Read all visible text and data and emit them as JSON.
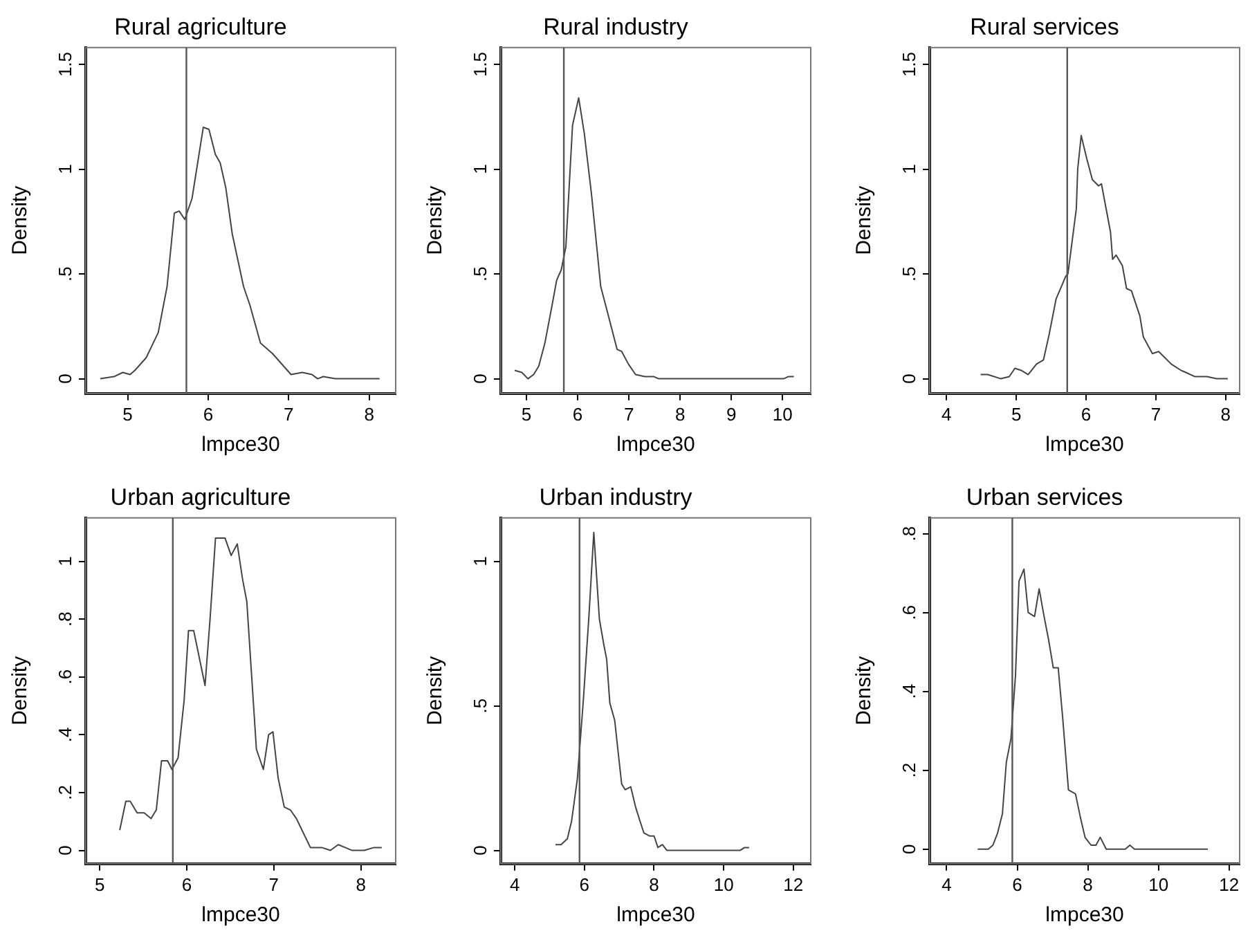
{
  "chart_data": [
    {
      "type": "line",
      "title": "Rural agriculture",
      "xlabel": "lmpce30",
      "ylabel": "Density",
      "xlim": [
        4.48,
        8.33
      ],
      "xticks": [
        5,
        6,
        7,
        8
      ],
      "ylim": [
        -0.07,
        1.58
      ],
      "yticks": [
        0,
        {
          "value": 0.5,
          "label": ".5"
        },
        1,
        1.5
      ],
      "grid": false,
      "legend": false,
      "marker": "none",
      "ref_lines": [
        {
          "axis": "x",
          "value": 5.73,
          "color": "#555555"
        }
      ],
      "series": [
        {
          "color": "#444444",
          "x": [
            4.66,
            4.83,
            4.94,
            5.03,
            5.09,
            5.23,
            5.38,
            5.49,
            5.58,
            5.64,
            5.71,
            5.8,
            5.94,
            6.01,
            6.09,
            6.15,
            6.22,
            6.3,
            6.44,
            6.52,
            6.65,
            6.8,
            7.03,
            7.17,
            7.29,
            7.36,
            7.43,
            7.58,
            8.13
          ],
          "values": [
            0,
            0.01,
            0.03,
            0.02,
            0.04,
            0.1,
            0.22,
            0.44,
            0.79,
            0.8,
            0.76,
            0.86,
            1.2,
            1.19,
            1.07,
            1.03,
            0.91,
            0.69,
            0.44,
            0.35,
            0.17,
            0.12,
            0.02,
            0.03,
            0.02,
            0,
            0.01,
            0,
            0
          ]
        }
      ]
    },
    {
      "type": "line",
      "title": "Rural industry",
      "xlabel": "lmpce30",
      "ylabel": "Density",
      "xlim": [
        4.5,
        10.55
      ],
      "xticks": [
        5,
        6,
        7,
        8,
        9,
        10
      ],
      "ylim": [
        -0.07,
        1.58
      ],
      "yticks": [
        0,
        {
          "value": 0.5,
          "label": ".5"
        },
        1,
        1.5
      ],
      "grid": false,
      "legend": false,
      "marker": "none",
      "ref_lines": [
        {
          "axis": "x",
          "value": 5.73,
          "color": "#555555"
        }
      ],
      "series": [
        {
          "color": "#444444",
          "x": [
            4.77,
            4.91,
            5.03,
            5.14,
            5.24,
            5.36,
            5.5,
            5.59,
            5.68,
            5.77,
            5.9,
            6.02,
            6.13,
            6.27,
            6.45,
            6.59,
            6.77,
            6.86,
            6.99,
            7.13,
            7.31,
            7.49,
            7.58,
            10.02,
            10.11,
            10.22
          ],
          "values": [
            0.04,
            0.03,
            0,
            0.02,
            0.06,
            0.17,
            0.35,
            0.47,
            0.52,
            0.63,
            1.21,
            1.34,
            1.17,
            0.88,
            0.44,
            0.31,
            0.14,
            0.13,
            0.07,
            0.02,
            0.01,
            0.01,
            0,
            0,
            0.01,
            0.01
          ]
        }
      ]
    },
    {
      "type": "line",
      "title": "Rural services",
      "xlabel": "lmpce30",
      "ylabel": "Density",
      "xlim": [
        3.76,
        8.2
      ],
      "xticks": [
        4,
        5,
        6,
        7,
        8
      ],
      "ylim": [
        -0.07,
        1.58
      ],
      "yticks": [
        0,
        {
          "value": 0.5,
          "label": ".5"
        },
        1,
        1.5
      ],
      "grid": false,
      "legend": false,
      "marker": "none",
      "ref_lines": [
        {
          "axis": "x",
          "value": 5.73,
          "color": "#555555"
        }
      ],
      "series": [
        {
          "color": "#444444",
          "x": [
            4.49,
            4.59,
            4.78,
            4.9,
            4.98,
            5.07,
            5.17,
            5.29,
            5.39,
            5.47,
            5.57,
            5.71,
            5.74,
            5.86,
            5.88,
            5.93,
            6.01,
            6.09,
            6.18,
            6.22,
            6.35,
            6.38,
            6.43,
            6.52,
            6.58,
            6.65,
            6.77,
            6.82,
            6.95,
            7.04,
            7.22,
            7.36,
            7.43,
            7.56,
            7.73,
            7.87,
            8.03
          ],
          "values": [
            0.02,
            0.02,
            0,
            0.01,
            0.05,
            0.04,
            0.02,
            0.07,
            0.09,
            0.21,
            0.38,
            0.49,
            0.5,
            0.81,
            1.0,
            1.16,
            1.05,
            0.95,
            0.92,
            0.93,
            0.7,
            0.57,
            0.59,
            0.54,
            0.43,
            0.42,
            0.3,
            0.2,
            0.12,
            0.13,
            0.07,
            0.04,
            0.03,
            0.01,
            0.01,
            0,
            0
          ]
        }
      ]
    },
    {
      "type": "line",
      "title": "Urban agriculture",
      "xlabel": "lmpce30",
      "ylabel": "Density",
      "xlim": [
        4.84,
        8.4
      ],
      "xticks": [
        5,
        6,
        7,
        8
      ],
      "ylim": [
        -0.046,
        1.15
      ],
      "yticks": [
        0,
        {
          "value": 0.2,
          "label": ".2"
        },
        {
          "value": 0.4,
          "label": ".4"
        },
        {
          "value": 0.6,
          "label": ".6"
        },
        {
          "value": 0.8,
          "label": ".8"
        },
        1
      ],
      "grid": false,
      "legend": false,
      "marker": "none",
      "ref_lines": [
        {
          "axis": "x",
          "value": 5.84,
          "color": "#555555"
        }
      ],
      "series": [
        {
          "color": "#444444",
          "x": [
            5.23,
            5.3,
            5.35,
            5.43,
            5.51,
            5.59,
            5.65,
            5.71,
            5.78,
            5.83,
            5.9,
            5.97,
            6.02,
            6.08,
            6.21,
            6.27,
            6.33,
            6.44,
            6.51,
            6.58,
            6.64,
            6.69,
            6.8,
            6.88,
            6.94,
            6.99,
            7.05,
            7.12,
            7.19,
            7.26,
            7.34,
            7.42,
            7.55,
            7.65,
            7.74,
            7.82,
            7.9,
            8.04,
            8.15,
            8.24
          ],
          "values": [
            0.07,
            0.17,
            0.17,
            0.13,
            0.13,
            0.11,
            0.14,
            0.31,
            0.31,
            0.28,
            0.32,
            0.52,
            0.76,
            0.76,
            0.57,
            0.81,
            1.08,
            1.08,
            1.02,
            1.06,
            0.94,
            0.86,
            0.35,
            0.28,
            0.4,
            0.41,
            0.25,
            0.15,
            0.14,
            0.11,
            0.06,
            0.01,
            0.01,
            0,
            0.02,
            0.01,
            0,
            0,
            0.01,
            0.01
          ]
        }
      ]
    },
    {
      "type": "line",
      "title": "Urban industry",
      "xlabel": "lmpce30",
      "ylabel": "Density",
      "xlim": [
        3.6,
        12.5
      ],
      "xticks": [
        4,
        6,
        8,
        10,
        12
      ],
      "ylim": [
        -0.046,
        1.15
      ],
      "yticks": [
        0,
        {
          "value": 0.5,
          "label": ".5"
        },
        1
      ],
      "grid": false,
      "legend": false,
      "marker": "none",
      "ref_lines": [
        {
          "axis": "x",
          "value": 5.86,
          "color": "#555555"
        }
      ],
      "series": [
        {
          "color": "#444444",
          "x": [
            5.17,
            5.33,
            5.51,
            5.63,
            5.8,
            5.97,
            6.13,
            6.27,
            6.43,
            6.56,
            6.64,
            6.73,
            6.87,
            6.96,
            7.07,
            7.17,
            7.33,
            7.47,
            7.6,
            7.71,
            7.87,
            8.0,
            8.11,
            8.24,
            8.37,
            10.47,
            10.6,
            10.73
          ],
          "values": [
            0.02,
            0.02,
            0.04,
            0.1,
            0.25,
            0.52,
            0.81,
            1.1,
            0.8,
            0.71,
            0.66,
            0.51,
            0.45,
            0.35,
            0.23,
            0.21,
            0.22,
            0.15,
            0.1,
            0.06,
            0.05,
            0.05,
            0.01,
            0.02,
            0,
            0,
            0.01,
            0.01
          ]
        }
      ]
    },
    {
      "type": "line",
      "title": "Urban services",
      "xlabel": "lmpce30",
      "ylabel": "Density",
      "xlim": [
        3.52,
        12.3
      ],
      "xticks": [
        4,
        6,
        8,
        10,
        12
      ],
      "ylim": [
        -0.037,
        0.84
      ],
      "yticks": [
        0,
        {
          "value": 0.2,
          "label": ".2"
        },
        {
          "value": 0.4,
          "label": ".4"
        },
        {
          "value": 0.6,
          "label": ".6"
        },
        {
          "value": 0.8,
          "label": ".8"
        }
      ],
      "grid": false,
      "legend": false,
      "marker": "none",
      "ref_lines": [
        {
          "axis": "x",
          "value": 5.86,
          "color": "#555555"
        }
      ],
      "series": [
        {
          "color": "#444444",
          "x": [
            4.88,
            5.18,
            5.31,
            5.44,
            5.58,
            5.69,
            5.82,
            5.95,
            6.05,
            6.19,
            6.31,
            6.49,
            6.62,
            6.76,
            6.89,
            7.02,
            7.16,
            7.29,
            7.45,
            7.65,
            7.79,
            7.92,
            8.09,
            8.23,
            8.35,
            8.52,
            9.06,
            9.19,
            9.32,
            11.4
          ],
          "values": [
            0,
            0,
            0.01,
            0.04,
            0.09,
            0.22,
            0.28,
            0.44,
            0.68,
            0.71,
            0.6,
            0.59,
            0.66,
            0.59,
            0.53,
            0.46,
            0.46,
            0.33,
            0.15,
            0.14,
            0.08,
            0.03,
            0.01,
            0.01,
            0.03,
            0,
            0,
            0.01,
            0,
            0
          ]
        }
      ]
    }
  ]
}
